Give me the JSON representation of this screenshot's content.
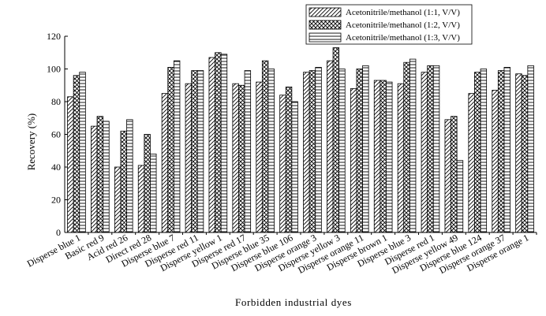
{
  "chart_data": {
    "type": "bar",
    "xlabel": "Forbidden industrial dyes",
    "ylabel": "Recovery (%)",
    "ylim": [
      0,
      120
    ],
    "yticks": [
      "0",
      "20",
      "40",
      "60",
      "80",
      "100",
      "120"
    ],
    "grid": false,
    "legend_position": "top-right",
    "categories": [
      "Disperse blue 1",
      "Basic red 9",
      "Acid red 26",
      "Direct red 28",
      "Disperse blue 7",
      "Disperse red 11",
      "Disperse yellow 1",
      "Disperse red 17",
      "Disperse blue 35",
      "Disperse blue 106",
      "Disperse orange 3",
      "Disperse yellow 3",
      "Disperse orange 11",
      "Disperse brown 1",
      "Disperse blue 3",
      "Disperse red 1",
      "Disperse yellow 49",
      "Disperse blue 124",
      "Disperse orange 37",
      "Disperse orange 1"
    ],
    "series": [
      {
        "name": "Acetonitrile/methanol (1:1, V/V)",
        "pattern": "diagonal",
        "values": [
          83,
          65,
          40,
          41,
          85,
          91,
          107,
          91,
          92,
          84,
          98,
          105,
          88,
          93,
          91,
          98,
          69,
          85,
          87,
          97
        ]
      },
      {
        "name": "Acetonitrile/methanol (1:2, V/V)",
        "pattern": "crosshatch",
        "values": [
          96,
          71,
          62,
          60,
          101,
          99,
          110,
          90,
          105,
          89,
          99,
          113,
          100,
          93,
          104,
          102,
          71,
          98,
          99,
          96
        ]
      },
      {
        "name": "Acetonitrile/methanol (1:3, V/V)",
        "pattern": "horizontal",
        "values": [
          98,
          68,
          69,
          48,
          105,
          99,
          109,
          99,
          100,
          80,
          101,
          100,
          102,
          92,
          106,
          102,
          44,
          100,
          101,
          102
        ]
      }
    ]
  }
}
